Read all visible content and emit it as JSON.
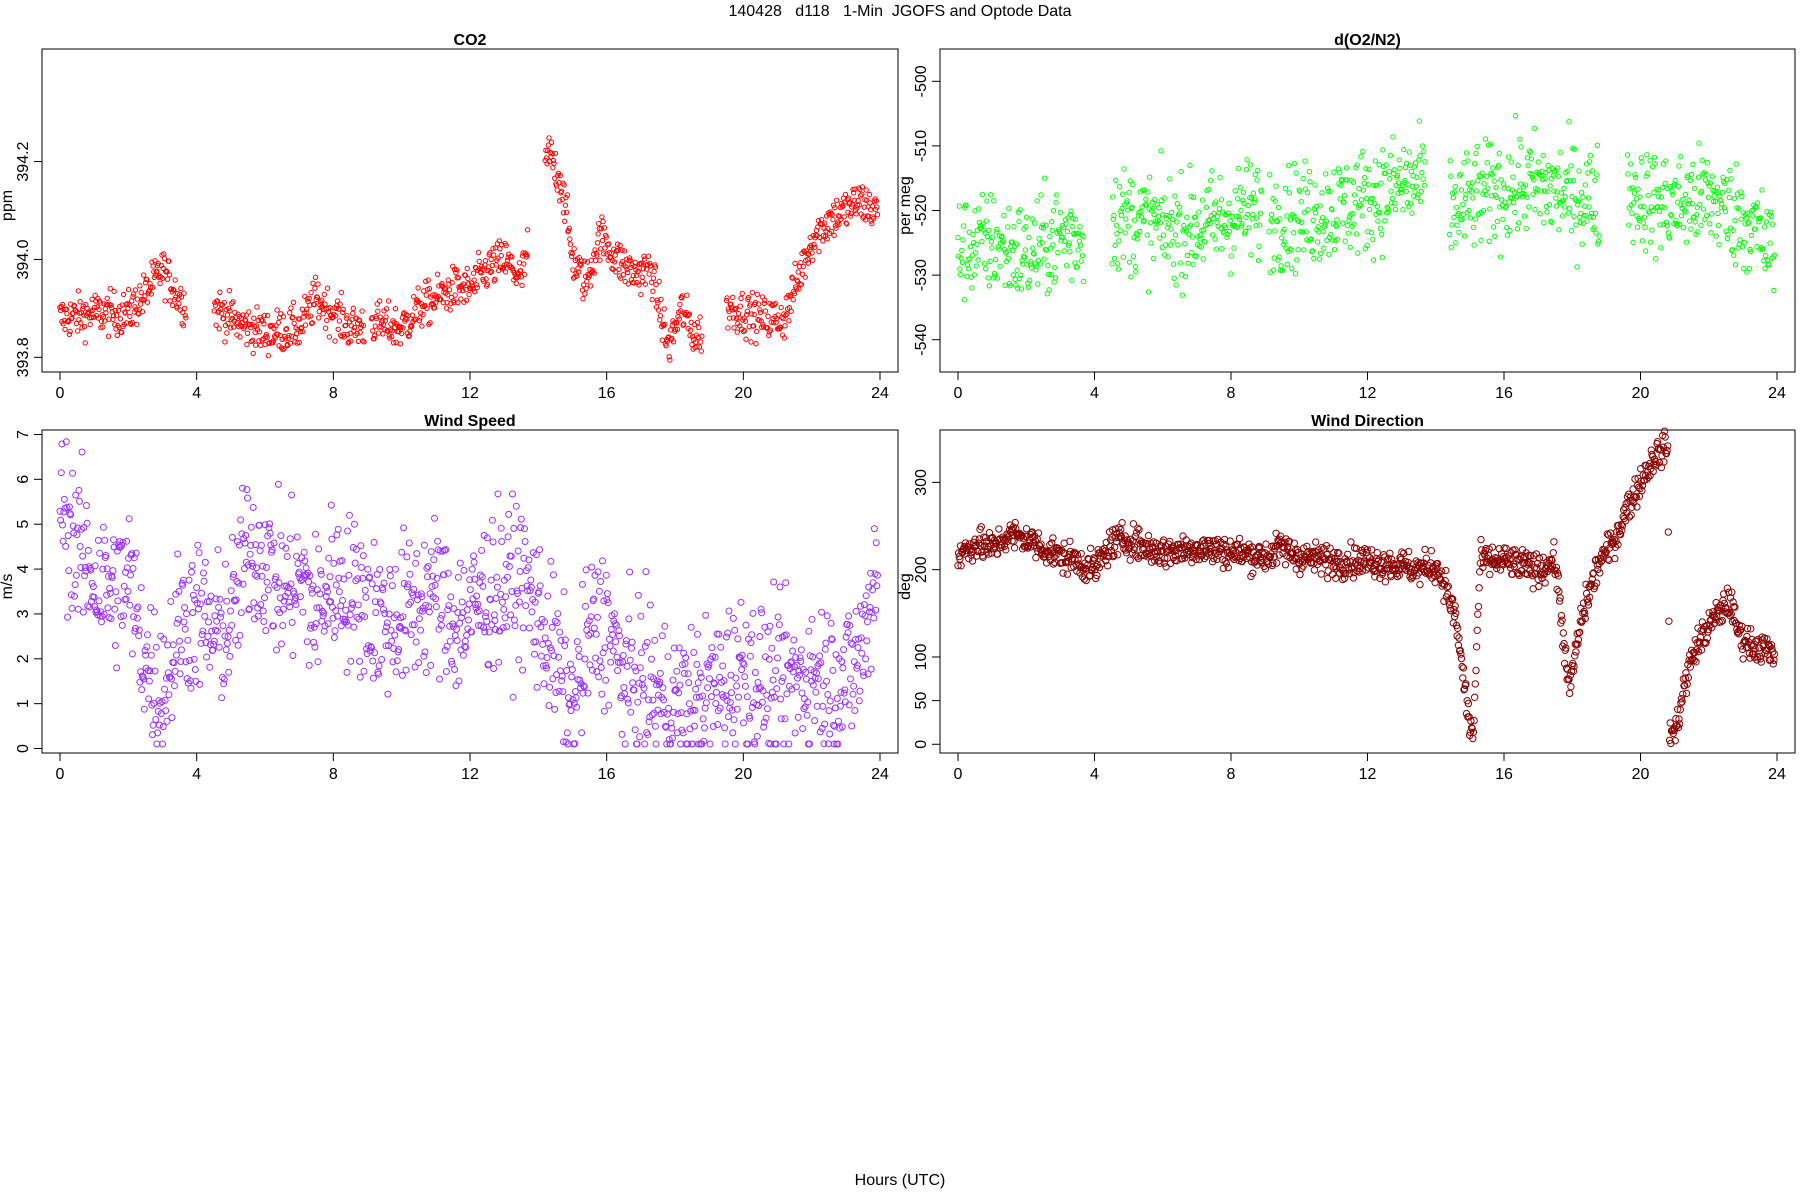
{
  "page": {
    "title": "140428   d118   1-Min  JGOFS and Optode Data",
    "x_caption": "Hours (UTC)"
  },
  "chart_data": [
    {
      "type": "scatter",
      "title": "CO2",
      "ylabel": "ppm",
      "xlabel": "",
      "xlim": [
        0,
        24
      ],
      "ylim": [
        393.77,
        394.43
      ],
      "x_ticks": [
        0,
        4,
        8,
        12,
        16,
        20,
        24
      ],
      "y_ticks": [
        393.8,
        394.0,
        394.2
      ],
      "y_tick_labels": [
        "393.8",
        "394.0",
        "394.2"
      ],
      "color": "#ff0000",
      "marker": "open-circle-small",
      "series": [
        {
          "x": [
            0,
            1,
            2,
            2.5,
            3,
            3.5,
            3.8,
            4.6,
            5.2,
            6,
            7,
            7.5,
            8,
            8.5,
            9.2,
            10,
            10.5,
            11,
            11.5,
            12,
            12.5,
            13,
            13.5,
            14.3,
            14.7,
            15,
            15.4,
            15.8,
            16.3,
            16.8,
            17.3,
            17.8,
            18.2,
            18.6,
            19.6,
            20.5,
            21.2,
            21.6,
            22,
            22.5,
            23,
            23.4,
            23.8
          ],
          "y": [
            393.88,
            393.89,
            393.89,
            393.93,
            393.98,
            393.92,
            393.9,
            393.9,
            393.87,
            393.85,
            393.86,
            393.92,
            393.89,
            393.86,
            393.87,
            393.86,
            393.9,
            393.92,
            393.94,
            393.94,
            393.98,
            394.0,
            393.96,
            394.22,
            394.15,
            394.0,
            393.95,
            394.05,
            394.0,
            393.97,
            393.98,
            393.82,
            393.9,
            393.84,
            393.9,
            393.88,
            393.88,
            393.96,
            394.04,
            394.08,
            394.1,
            394.12,
            394.1
          ]
        }
      ]
    },
    {
      "type": "scatter",
      "title": "d(O2/N2)",
      "ylabel": "per meg",
      "xlabel": "",
      "xlim": [
        0,
        24
      ],
      "ylim": [
        -545,
        -495
      ],
      "x_ticks": [
        0,
        4,
        8,
        12,
        16,
        20,
        24
      ],
      "y_ticks": [
        -540,
        -530,
        -520,
        -510,
        -500
      ],
      "y_tick_labels": [
        "-540",
        "-530",
        "-520",
        "-510",
        "-500"
      ],
      "color": "#00ff00",
      "marker": "open-circle-small",
      "series": [
        {
          "x": [
            0,
            1,
            2,
            3,
            3.8,
            4.6,
            5.5,
            6.5,
            7.5,
            8.5,
            9.2,
            10,
            10.8,
            11.5,
            12.2,
            13,
            13.6,
            14.5,
            15.2,
            16,
            16.8,
            17.5,
            18.2,
            18.7,
            19.7,
            20.5,
            21.2,
            22,
            22.6,
            23.2,
            23.8
          ],
          "y": [
            -526,
            -525,
            -527,
            -524,
            -524,
            -521,
            -522,
            -523,
            -522,
            -520,
            -521,
            -521,
            -520,
            -519,
            -518,
            -516,
            -516,
            -520,
            -518,
            -517,
            -516,
            -517,
            -518,
            -518,
            -517,
            -519,
            -519,
            -518,
            -520,
            -522,
            -526
          ]
        }
      ]
    },
    {
      "type": "scatter",
      "title": "Wind Speed",
      "ylabel": "m/s",
      "xlabel": "",
      "xlim": [
        0,
        24
      ],
      "ylim": [
        -0.1,
        7.1
      ],
      "x_ticks": [
        0,
        4,
        8,
        12,
        16,
        20,
        24
      ],
      "y_ticks": [
        0,
        1,
        2,
        3,
        4,
        5,
        6,
        7
      ],
      "y_tick_labels": [
        "0",
        "1",
        "2",
        "3",
        "4",
        "5",
        "6",
        "7"
      ],
      "color": "#9b30ff",
      "marker": "open-circle",
      "series": [
        {
          "x": [
            0,
            0.5,
            1,
            1.5,
            2,
            2.5,
            3,
            3.5,
            4,
            4.5,
            5,
            5.5,
            6,
            6.5,
            7,
            7.5,
            8,
            8.5,
            9,
            9.5,
            10,
            10.5,
            11,
            11.5,
            12,
            12.5,
            13,
            13.5,
            14,
            14.5,
            15,
            15.5,
            16,
            16.5,
            17,
            17.5,
            18,
            18.5,
            19,
            19.5,
            20,
            20.5,
            21,
            21.5,
            22,
            22.5,
            23,
            23.5,
            23.9
          ],
          "y": [
            5.5,
            4.5,
            3.8,
            3.5,
            3.8,
            2.0,
            1.2,
            2.8,
            3.0,
            2.5,
            2.8,
            4.5,
            4.2,
            3.5,
            3.8,
            3.0,
            3.8,
            3.5,
            3.2,
            2.8,
            3.0,
            3.2,
            3.5,
            2.8,
            3.0,
            3.5,
            3.6,
            3.8,
            3.0,
            2.0,
            0.8,
            2.5,
            2.8,
            1.5,
            1.5,
            1.2,
            1.0,
            1.0,
            1.2,
            1.5,
            1.8,
            1.5,
            1.4,
            1.5,
            1.6,
            1.6,
            1.5,
            2.2,
            4.2
          ]
        }
      ]
    },
    {
      "type": "scatter",
      "title": "Wind Direction",
      "ylabel": "deg",
      "xlabel": "",
      "xlim": [
        0,
        24
      ],
      "ylim": [
        -10,
        360
      ],
      "x_ticks": [
        0,
        4,
        8,
        12,
        16,
        20,
        24
      ],
      "y_ticks": [
        0,
        50,
        100,
        200,
        300
      ],
      "y_tick_labels": [
        "0",
        "50",
        "100",
        "200",
        "300"
      ],
      "color": "#8b0000",
      "marker": "open-circle",
      "series": [
        {
          "x": [
            0,
            0.5,
            1,
            1.5,
            2,
            2.5,
            3,
            3.5,
            4,
            4.5,
            5,
            5.5,
            6,
            7,
            8,
            9,
            9.5,
            10,
            11,
            12,
            13,
            13.5,
            14,
            14.3,
            14.6,
            14.8,
            15.0,
            15.1,
            15.3,
            16,
            16.5,
            17,
            17.5,
            17.7,
            17.9,
            18.3,
            18.8,
            19.2,
            19.6,
            20,
            20.4,
            20.8,
            20.85,
            21.0,
            21.3,
            21.6,
            22,
            22.3,
            22.6,
            22.9,
            23.2,
            23.6,
            23.9
          ],
          "y": [
            215,
            230,
            225,
            240,
            235,
            225,
            215,
            210,
            200,
            230,
            235,
            225,
            220,
            225,
            220,
            215,
            225,
            215,
            210,
            210,
            205,
            200,
            205,
            180,
            140,
            80,
            20,
            10,
            210,
            210,
            205,
            200,
            210,
            140,
            60,
            150,
            210,
            230,
            270,
            300,
            330,
            340,
            20,
            10,
            70,
            110,
            135,
            150,
            165,
            125,
            115,
            110,
            100
          ]
        }
      ]
    }
  ]
}
